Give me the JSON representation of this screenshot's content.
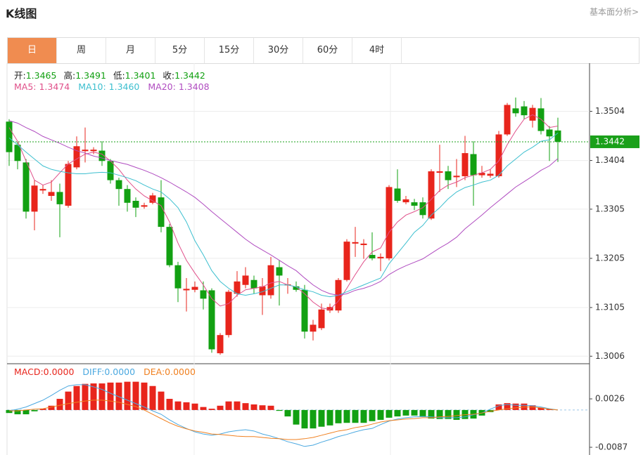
{
  "header": {
    "title": "K线图",
    "link": "基本面分析>"
  },
  "tabs": [
    "日",
    "周",
    "月",
    "5分",
    "15分",
    "30分",
    "60分",
    "4时"
  ],
  "active_tab": "日",
  "chart_data": [
    {
      "type": "candlestick",
      "info": [
        {
          "label": "开:",
          "value": "1.3465"
        },
        {
          "label": "高:",
          "value": "1.3491"
        },
        {
          "label": "低:",
          "value": "1.3401"
        },
        {
          "label": "收:",
          "value": "1.3442"
        }
      ],
      "up_color": "#e8251c",
      "down_color": "#12a012",
      "open": [
        1.3483,
        1.3436,
        1.34,
        1.33,
        1.3343,
        1.3332,
        1.334,
        1.3312,
        1.339,
        1.3423,
        1.3423,
        1.3424,
        1.3403,
        1.3364,
        1.3346,
        1.3322,
        1.331,
        1.3318,
        1.3329,
        1.3269,
        1.3191,
        1.314,
        1.3141,
        1.314,
        1.314,
        1.3012,
        1.3049,
        1.3133,
        1.3151,
        1.3161,
        1.313,
        1.313,
        1.3187,
        1.315,
        1.3148,
        1.3141,
        1.3056,
        1.3063,
        1.3099,
        1.3099,
        1.3161,
        1.3235,
        1.3232,
        1.3212,
        1.3205,
        1.3205,
        1.3347,
        1.3319,
        1.3319,
        1.3319,
        1.3286,
        1.3379,
        1.3382,
        1.337,
        1.3372,
        1.3417,
        1.3374,
        1.3373,
        1.3372,
        1.3457,
        1.351,
        1.3514,
        1.3485,
        1.351,
        1.3467,
        1.3465
      ],
      "high": [
        1.3488,
        1.3443,
        1.3407,
        1.3364,
        1.3354,
        1.3364,
        1.3357,
        1.3403,
        1.3453,
        1.3471,
        1.3431,
        1.3443,
        1.3407,
        1.3369,
        1.3354,
        1.3329,
        1.3318,
        1.3338,
        1.3364,
        1.3275,
        1.3198,
        1.3165,
        1.3158,
        1.3158,
        1.3144,
        1.3053,
        1.3141,
        1.3179,
        1.3187,
        1.317,
        1.3165,
        1.3208,
        1.3201,
        1.3165,
        1.3158,
        1.3151,
        1.308,
        1.3113,
        1.3113,
        1.3165,
        1.3244,
        1.3269,
        1.3244,
        1.3258,
        1.3215,
        1.3354,
        1.3386,
        1.3332,
        1.3326,
        1.3329,
        1.3386,
        1.3436,
        1.3393,
        1.3407,
        1.3454,
        1.3443,
        1.3393,
        1.3386,
        1.3464,
        1.3521,
        1.3532,
        1.3525,
        1.3517,
        1.3531,
        1.3474,
        1.3491
      ],
      "low": [
        1.3393,
        1.3386,
        1.3286,
        1.3262,
        1.3336,
        1.3322,
        1.3248,
        1.3308,
        1.3386,
        1.34,
        1.3417,
        1.3393,
        1.3357,
        1.3312,
        1.33,
        1.3289,
        1.3306,
        1.3315,
        1.3258,
        1.3187,
        1.3116,
        1.3097,
        1.3136,
        1.3101,
        1.3013,
        1.3009,
        1.3044,
        1.3127,
        1.3144,
        1.3133,
        1.309,
        1.3123,
        1.3109,
        1.3133,
        1.3137,
        1.3042,
        1.3038,
        1.3059,
        1.3094,
        1.3094,
        1.3158,
        1.3208,
        1.3204,
        1.3201,
        1.3179,
        1.3201,
        1.3318,
        1.3315,
        1.3303,
        1.3286,
        1.3283,
        1.334,
        1.3346,
        1.335,
        1.3364,
        1.3312,
        1.3369,
        1.3369,
        1.3369,
        1.3454,
        1.3493,
        1.3488,
        1.3471,
        1.3457,
        1.3403,
        1.3401
      ],
      "close": [
        1.3421,
        1.3403,
        1.33,
        1.3353,
        1.3346,
        1.334,
        1.3315,
        1.3397,
        1.3433,
        1.3426,
        1.3426,
        1.3403,
        1.3364,
        1.3346,
        1.3318,
        1.3308,
        1.3313,
        1.3333,
        1.3269,
        1.3191,
        1.3144,
        1.3143,
        1.3147,
        1.3123,
        1.302,
        1.3049,
        1.3137,
        1.3158,
        1.317,
        1.3144,
        1.3148,
        1.3191,
        1.317,
        1.3152,
        1.3141,
        1.3056,
        1.307,
        1.3101,
        1.3106,
        1.3161,
        1.3239,
        1.3238,
        1.3235,
        1.3205,
        1.3208,
        1.335,
        1.3322,
        1.3325,
        1.3312,
        1.3293,
        1.3382,
        1.3382,
        1.3364,
        1.3373,
        1.3419,
        1.3374,
        1.3379,
        1.3377,
        1.3457,
        1.3517,
        1.35,
        1.3496,
        1.3511,
        1.3464,
        1.3453,
        1.3442
      ],
      "series": [
        {
          "name": "MA5: 1.3474",
          "color": "#e0508a",
          "values": [
            1.3471,
            1.3443,
            1.3403,
            1.3364,
            1.3354,
            1.336,
            1.3379,
            1.3397,
            1.3407,
            1.3417,
            1.3421,
            1.3417,
            1.3403,
            1.3386,
            1.3364,
            1.3346,
            1.3332,
            1.3322,
            1.3312,
            1.3279,
            1.3236,
            1.3201,
            1.3175,
            1.3151,
            1.3123,
            1.3108,
            1.3113,
            1.313,
            1.3141,
            1.3144,
            1.3147,
            1.3155,
            1.3158,
            1.3151,
            1.3147,
            1.3133,
            1.3116,
            1.3104,
            1.3101,
            1.3118,
            1.3144,
            1.3172,
            1.3198,
            1.3218,
            1.3226,
            1.3258,
            1.3279,
            1.3293,
            1.33,
            1.3308,
            1.3325,
            1.3343,
            1.3354,
            1.336,
            1.3369,
            1.3374,
            1.3379,
            1.3386,
            1.3403,
            1.3436,
            1.3464,
            1.3488,
            1.3497,
            1.3488,
            1.3471,
            1.3474
          ]
        },
        {
          "name": "MA10: 1.3460",
          "color": "#3cbfcf",
          "values": [
            1.345,
            1.3436,
            1.3421,
            1.3407,
            1.3393,
            1.3386,
            1.3382,
            1.3379,
            1.3377,
            1.3377,
            1.3379,
            1.338,
            1.3379,
            1.3374,
            1.3369,
            1.3363,
            1.3354,
            1.3346,
            1.334,
            1.3326,
            1.3308,
            1.3279,
            1.3241,
            1.3212,
            1.318,
            1.3158,
            1.3144,
            1.3133,
            1.313,
            1.3133,
            1.3137,
            1.3144,
            1.3151,
            1.3151,
            1.3147,
            1.3141,
            1.3137,
            1.313,
            1.3127,
            1.313,
            1.3137,
            1.3144,
            1.3151,
            1.3158,
            1.3165,
            1.3194,
            1.3215,
            1.3236,
            1.3258,
            1.3272,
            1.3293,
            1.3308,
            1.3326,
            1.334,
            1.3349,
            1.3354,
            1.336,
            1.3364,
            1.3374,
            1.3393,
            1.3407,
            1.3421,
            1.3431,
            1.3443,
            1.3446,
            1.346
          ]
        },
        {
          "name": "MA20: 1.3408",
          "color": "#b04cc0",
          "values": [
            1.3485,
            1.348,
            1.3471,
            1.3463,
            1.3453,
            1.3446,
            1.3439,
            1.3431,
            1.3424,
            1.3419,
            1.3413,
            1.3409,
            1.3404,
            1.34,
            1.3396,
            1.339,
            1.3384,
            1.3377,
            1.3369,
            1.336,
            1.335,
            1.334,
            1.3329,
            1.3315,
            1.33,
            1.3286,
            1.3272,
            1.3258,
            1.3244,
            1.3232,
            1.3222,
            1.3212,
            1.3201,
            1.319,
            1.318,
            1.3165,
            1.3151,
            1.314,
            1.3133,
            1.313,
            1.3133,
            1.314,
            1.3144,
            1.315,
            1.3158,
            1.3172,
            1.3182,
            1.319,
            1.3197,
            1.3204,
            1.3215,
            1.3226,
            1.3236,
            1.3248,
            1.3265,
            1.3279,
            1.3293,
            1.3308,
            1.3322,
            1.3336,
            1.335,
            1.3361,
            1.3372,
            1.3384,
            1.3393,
            1.3408
          ]
        }
      ],
      "last_price": 1.3442,
      "last_price_color": "#1aa01a",
      "ylim": [
        1.2995,
        1.3599
      ],
      "yticks": [
        1.3006,
        1.3105,
        1.3205,
        1.3305,
        1.3404,
        1.3504
      ],
      "grid": true
    },
    {
      "type": "macd",
      "down_color": "#12a012",
      "series": [
        {
          "name": "MACD:0.0000",
          "color": "#e8251c",
          "values": [
            -0.0007,
            -0.001,
            -0.001,
            -0.0003,
            0.0003,
            0.001,
            0.0026,
            0.0043,
            0.0056,
            0.0061,
            0.0062,
            0.0062,
            0.0064,
            0.0064,
            0.0066,
            0.0066,
            0.0064,
            0.0056,
            0.0043,
            0.0026,
            0.002,
            0.0018,
            0.0015,
            0.0007,
            0.0003,
            0.001,
            0.002,
            0.002,
            0.0016,
            0.0013,
            0.0011,
            0.001,
            -0.0002,
            -0.0015,
            -0.0034,
            -0.0043,
            -0.0043,
            -0.0039,
            -0.0036,
            -0.0031,
            -0.003,
            -0.003,
            -0.003,
            -0.0026,
            -0.0023,
            -0.0018,
            -0.0015,
            -0.0013,
            -0.0013,
            -0.0016,
            -0.002,
            -0.0021,
            -0.0021,
            -0.0023,
            -0.0021,
            -0.002,
            -0.0013,
            -0.0005,
            0.0013,
            0.0016,
            0.0015,
            0.0015,
            0.0011,
            0.0005,
            0.0002,
            0.0
          ]
        },
        {
          "name": "DIFF:0.0000",
          "color": "#4aa8e0",
          "values": [
            -0.0002,
            0.0002,
            0.0007,
            0.0015,
            0.0023,
            0.0034,
            0.0046,
            0.0056,
            0.0059,
            0.0059,
            0.0054,
            0.0048,
            0.0039,
            0.0031,
            0.0023,
            0.0015,
            0.0007,
            -0.0002,
            -0.001,
            -0.0023,
            -0.0034,
            -0.0043,
            -0.0051,
            -0.0056,
            -0.0059,
            -0.0056,
            -0.0051,
            -0.0048,
            -0.0046,
            -0.0049,
            -0.0056,
            -0.0061,
            -0.0067,
            -0.0074,
            -0.0079,
            -0.0085,
            -0.0082,
            -0.0075,
            -0.0069,
            -0.0062,
            -0.0057,
            -0.0051,
            -0.0046,
            -0.0043,
            -0.0034,
            -0.0026,
            -0.0021,
            -0.0018,
            -0.0016,
            -0.0015,
            -0.0016,
            -0.0018,
            -0.0018,
            -0.0018,
            -0.0016,
            -0.0011,
            -0.0007,
            0.0002,
            0.001,
            0.0013,
            0.0011,
            0.0011,
            0.001,
            0.0007,
            0.0003,
            0.0
          ]
        },
        {
          "name": "DEA:0.0000",
          "color": "#f08020",
          "values": [
            -0.0002,
            -0.0002,
            0.0,
            0.0002,
            0.0003,
            0.0007,
            0.0011,
            0.0015,
            0.0018,
            0.0021,
            0.0023,
            0.0023,
            0.0021,
            0.0018,
            0.0013,
            0.0008,
            0.0,
            -0.001,
            -0.002,
            -0.003,
            -0.0038,
            -0.0044,
            -0.0049,
            -0.0052,
            -0.0056,
            -0.0057,
            -0.0059,
            -0.0061,
            -0.0062,
            -0.0062,
            -0.0064,
            -0.0066,
            -0.0067,
            -0.0069,
            -0.0069,
            -0.0067,
            -0.0064,
            -0.0059,
            -0.0054,
            -0.0049,
            -0.0046,
            -0.0041,
            -0.0038,
            -0.0033,
            -0.0028,
            -0.0025,
            -0.0023,
            -0.0021,
            -0.002,
            -0.0018,
            -0.0018,
            -0.0016,
            -0.0015,
            -0.0013,
            -0.0011,
            -0.001,
            -0.0007,
            -0.0003,
            0.0,
            0.0003,
            0.0005,
            0.0007,
            0.0007,
            0.0005,
            0.0002,
            0.0
          ]
        }
      ],
      "ylim": [
        -0.0105,
        0.0108
      ],
      "yticks": [
        -0.0087,
        0.0026
      ]
    }
  ]
}
